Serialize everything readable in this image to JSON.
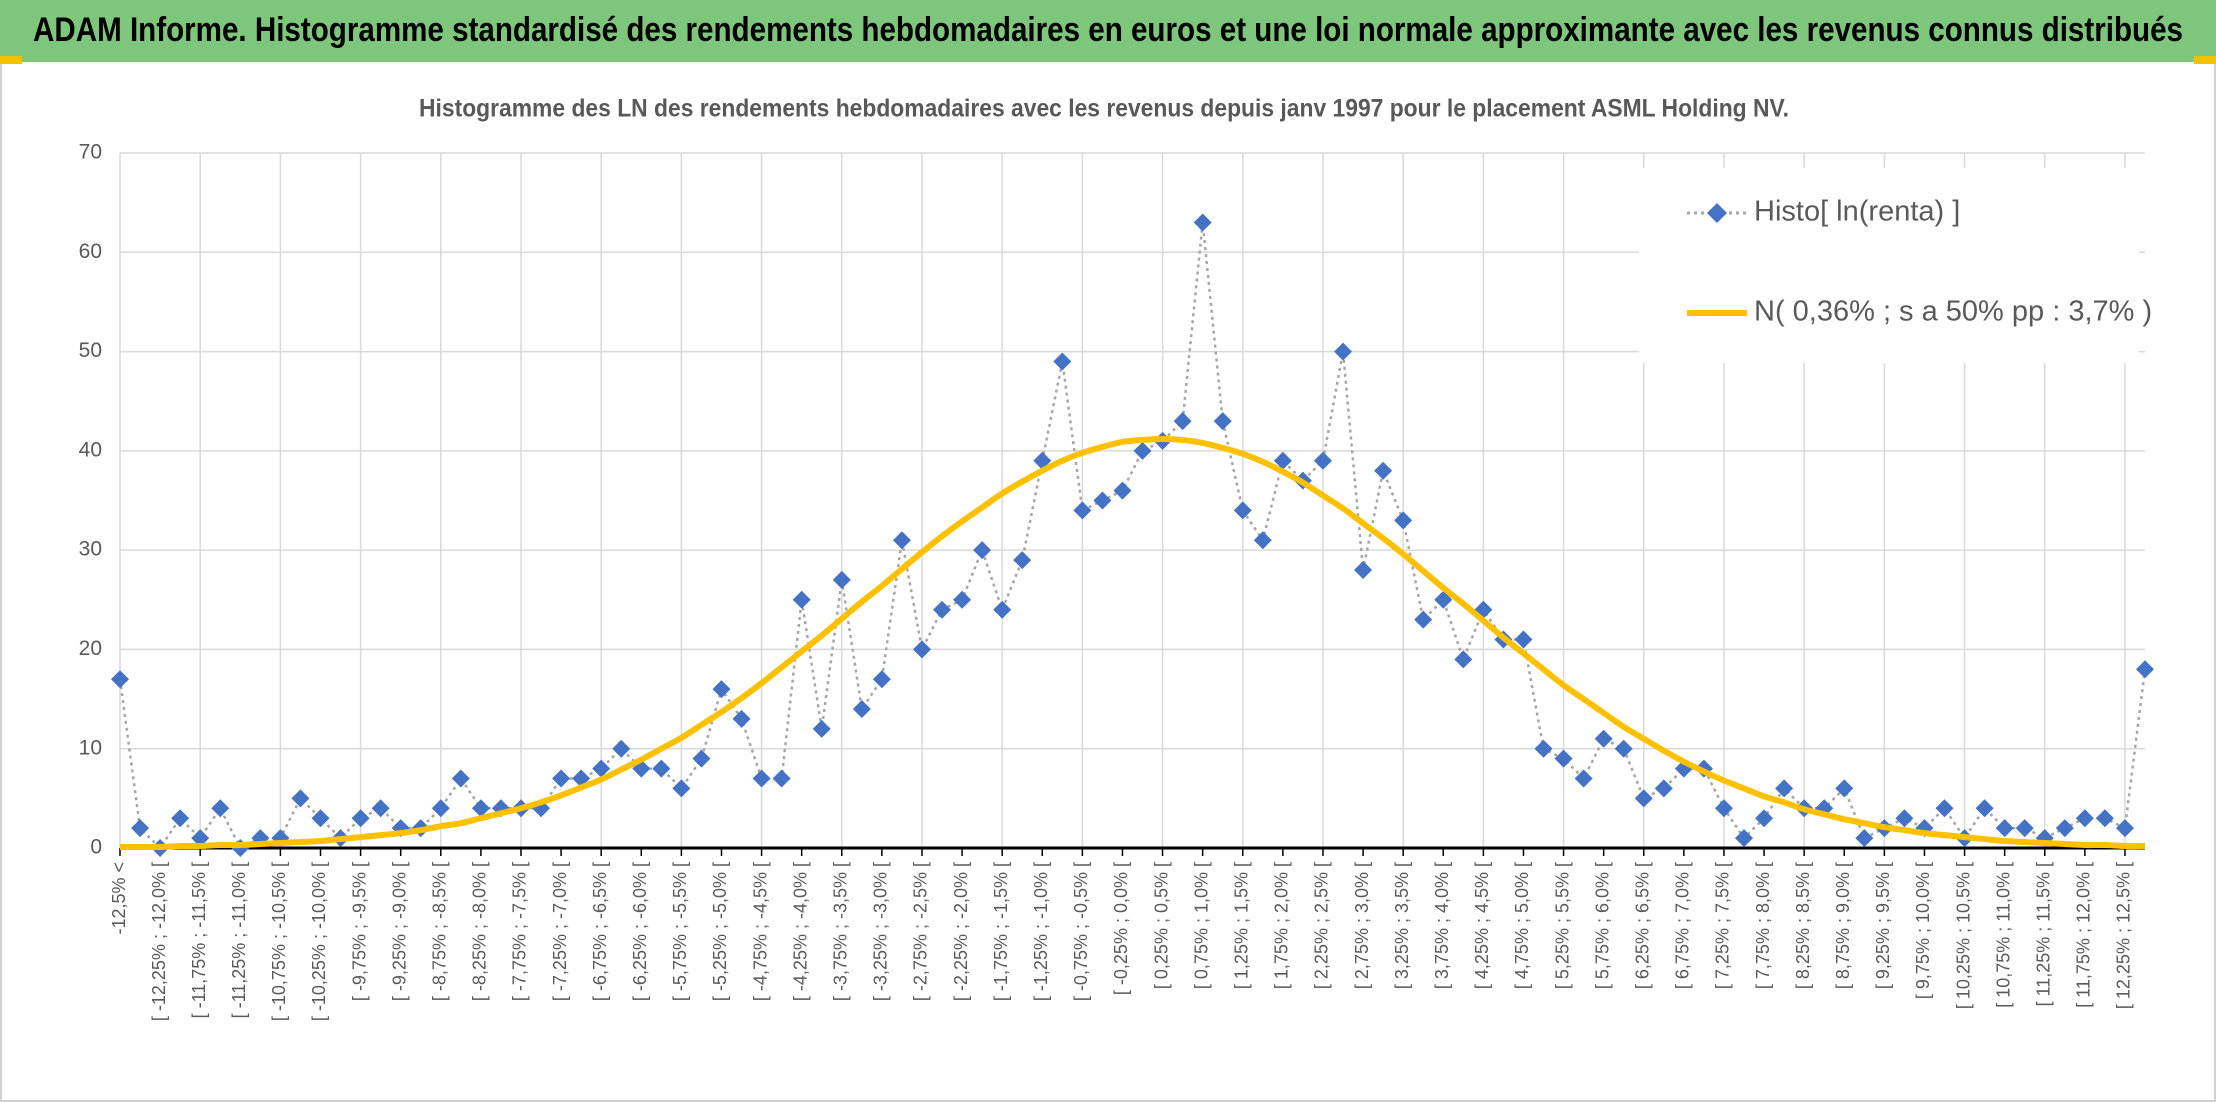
{
  "chart_data": {
    "type": "line",
    "title": "ADAM Informe. Histogramme standardisé des rendements hebdomadaires en euros et une loi normale approximante avec les revenus connus distribués",
    "subtitle": "Histogramme des LN des rendements hebdomadaires avec les revenus depuis janv 1997 pour le placement ASML Holding NV.",
    "categories": [
      "-12,5% <",
      null,
      "[ -12,25% ; -12,0% [",
      null,
      "[ -11,75% ; -11,5% [",
      null,
      "[ -11,25% ; -11,0% [",
      null,
      "[ -10,75% ; -10,5% [",
      null,
      "[ -10,25% ; -10,0% [",
      null,
      "[ -9,75% ; -9,5% [",
      null,
      "[ -9,25% ; -9,0% [",
      null,
      "[ -8,75% ; -8,5% [",
      null,
      "[ -8,25% ; -8,0% [",
      null,
      "[ -7,75% ; -7,5% [",
      null,
      "[ -7,25% ; -7,0% [",
      null,
      "[ -6,75% ; -6,5% [",
      null,
      "[ -6,25% ; -6,0% [",
      null,
      "[ -5,75% ; -5,5% [",
      null,
      "[ -5,25% ; -5,0% [",
      null,
      "[ -4,75% ; -4,5% [",
      null,
      "[ -4,25% ; -4,0% [",
      null,
      "[ -3,75% ; -3,5% [",
      null,
      "[ -3,25% ; -3,0% [",
      null,
      "[ -2,75% ; -2,5% [",
      null,
      "[ -2,25% ; -2,0% [",
      null,
      "[ -1,75% ; -1,5% [",
      null,
      "[ -1,25% ; -1,0% [",
      null,
      "[ -0,75% ; -0,5% [",
      null,
      "[ -0,25% ; 0,0% [",
      null,
      "[ 0,25% ; 0,5% [",
      null,
      "[ 0,75% ; 1,0% [",
      null,
      "[ 1,25% ; 1,5% [",
      null,
      "[ 1,75% ; 2,0% [",
      null,
      "[ 2,25% ; 2,5% [",
      null,
      "[ 2,75% ; 3,0% [",
      null,
      "[ 3,25% ; 3,5% [",
      null,
      "[ 3,75% ; 4,0% [",
      null,
      "[ 4,25% ; 4,5% [",
      null,
      "[ 4,75% ; 5,0% [",
      null,
      "[ 5,25% ; 5,5% [",
      null,
      "[ 5,75% ; 6,0% [",
      null,
      "[ 6,25% ; 6,5% [",
      null,
      "[ 6,75% ; 7,0% [",
      null,
      "[ 7,25% ; 7,5% [",
      null,
      "[ 7,75% ; 8,0% [",
      null,
      "[ 8,25% ; 8,5% [",
      null,
      "[ 8,75% ; 9,0% [",
      null,
      "[ 9,25% ; 9,5% [",
      null,
      "[ 9,75% ; 10,0% [",
      null,
      "[ 10,25% ; 10,5% [",
      null,
      "[ 10,75% ; 11,0% [",
      null,
      "[ 11,25% ; 11,5% [",
      null,
      "[ 11,75% ; 12,0% [",
      null,
      "[ 12,25% ; 12,5% [",
      null
    ],
    "series": [
      {
        "name": "Histo[ ln(renta) ]",
        "color": "#4472c4",
        "line_color": "#a6a6a6",
        "line_style": "dotted",
        "marker": "diamond",
        "values": [
          17,
          2,
          0,
          3,
          1,
          4,
          0,
          1,
          1,
          5,
          3,
          1,
          3,
          4,
          2,
          2,
          4,
          7,
          4,
          4,
          4,
          4,
          7,
          7,
          8,
          10,
          8,
          8,
          6,
          9,
          16,
          13,
          7,
          7,
          25,
          12,
          27,
          14,
          17,
          31,
          20,
          24,
          25,
          30,
          24,
          29,
          39,
          49,
          34,
          35,
          36,
          40,
          41,
          43,
          63,
          43,
          34,
          31,
          39,
          37,
          39,
          50,
          28,
          38,
          33,
          23,
          25,
          19,
          24,
          21,
          21,
          10,
          9,
          7,
          11,
          10,
          5,
          6,
          8,
          8,
          4,
          1,
          3,
          6,
          4,
          4,
          6,
          1,
          2,
          3,
          2,
          4,
          1,
          4,
          2,
          2,
          1,
          2,
          3,
          3,
          2,
          18
        ]
      },
      {
        "name": "N( 0,36% ; s a 50% pp : 3,7% )",
        "color": "#ffc000",
        "line_style": "solid",
        "smooth": true,
        "values": [
          0.1,
          0.1,
          0.1,
          0.2,
          0.2,
          0.3,
          0.3,
          0.4,
          0.5,
          0.6,
          0.7,
          0.9,
          1.1,
          1.3,
          1.5,
          1.8,
          2.2,
          2.5,
          3.0,
          3.5,
          4.0,
          4.6,
          5.3,
          6.1,
          6.9,
          7.9,
          8.9,
          10.0,
          11.1,
          12.4,
          13.7,
          15.1,
          16.6,
          18.2,
          19.8,
          21.4,
          23.1,
          24.8,
          26.4,
          28.1,
          29.8,
          31.4,
          32.9,
          34.3,
          35.7,
          36.9,
          38.0,
          39.0,
          39.8,
          40.4,
          40.9,
          41.1,
          41.2,
          41.1,
          40.8,
          40.3,
          39.7,
          38.9,
          37.9,
          36.8,
          35.5,
          34.2,
          32.7,
          31.2,
          29.6,
          27.9,
          26.2,
          24.6,
          22.9,
          21.2,
          19.6,
          18.0,
          16.4,
          15.0,
          13.6,
          12.2,
          11.0,
          9.8,
          8.7,
          7.7,
          6.8,
          6.0,
          5.2,
          4.6,
          3.9,
          3.4,
          2.9,
          2.5,
          2.1,
          1.8,
          1.5,
          1.3,
          1.1,
          0.9,
          0.7,
          0.6,
          0.5,
          0.4,
          0.3,
          0.3,
          0.2,
          0.2
        ]
      }
    ],
    "ylim": [
      0,
      70
    ],
    "yticks": [
      0,
      10,
      20,
      30,
      40,
      50,
      60,
      70
    ],
    "grid": true,
    "legend": "upper right"
  }
}
